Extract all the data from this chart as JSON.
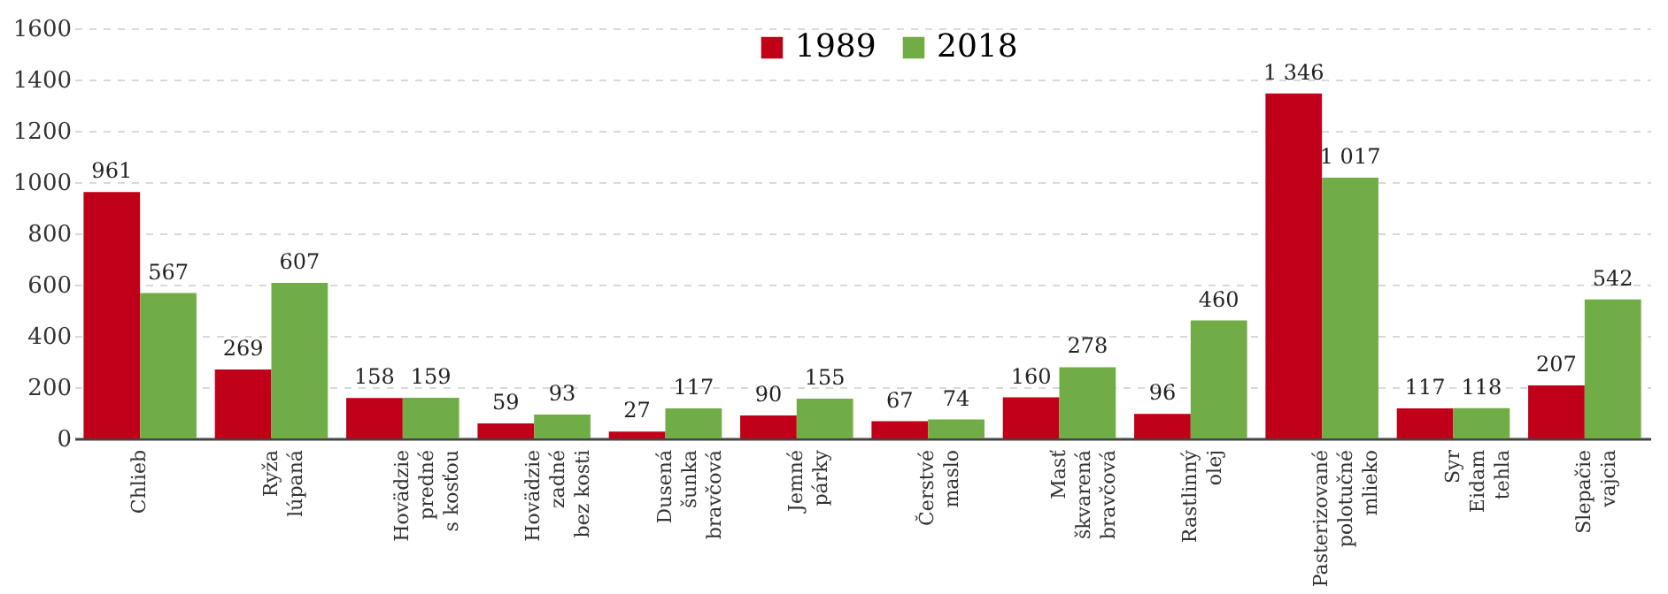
{
  "chart_data": {
    "type": "bar",
    "categories": [
      "Chlieb",
      "Ryža\nlúpaná",
      "Hovädzie\npredné\ns kosťou",
      "Hovädzie\nzadné\nbez kosti",
      "Dusená\nšunka\nbravčová",
      "Jemné\npárky",
      "Čerstvé\nmaslo",
      "Masť\nškvarená\nbravčová",
      "Rastlinný\nolej",
      "Pasterizované\npolotučné\nmlieko",
      "Syr\nEidam\ntehla",
      "Slepačie\nvajcia"
    ],
    "series": [
      {
        "name": "1989",
        "color": "#c00018",
        "values": [
          961,
          269,
          158,
          59,
          27,
          90,
          67,
          160,
          96,
          1346,
          117,
          207
        ],
        "value_labels": [
          "961",
          "269",
          "158",
          "59",
          "27",
          "90",
          "67",
          "160",
          "96",
          "1 346",
          "117",
          "207"
        ]
      },
      {
        "name": "2018",
        "color": "#70ad47",
        "values": [
          567,
          607,
          159,
          93,
          117,
          155,
          74,
          278,
          460,
          1017,
          118,
          542
        ],
        "value_labels": [
          "567",
          "607",
          "159",
          "93",
          "117",
          "155",
          "74",
          "278",
          "460",
          "1 017",
          "118",
          "542"
        ]
      }
    ],
    "ylim": [
      0,
      1600
    ],
    "yticks": [
      0,
      200,
      400,
      600,
      800,
      1000,
      1200,
      1400,
      1600
    ],
    "grid": "y",
    "legend": "top"
  }
}
